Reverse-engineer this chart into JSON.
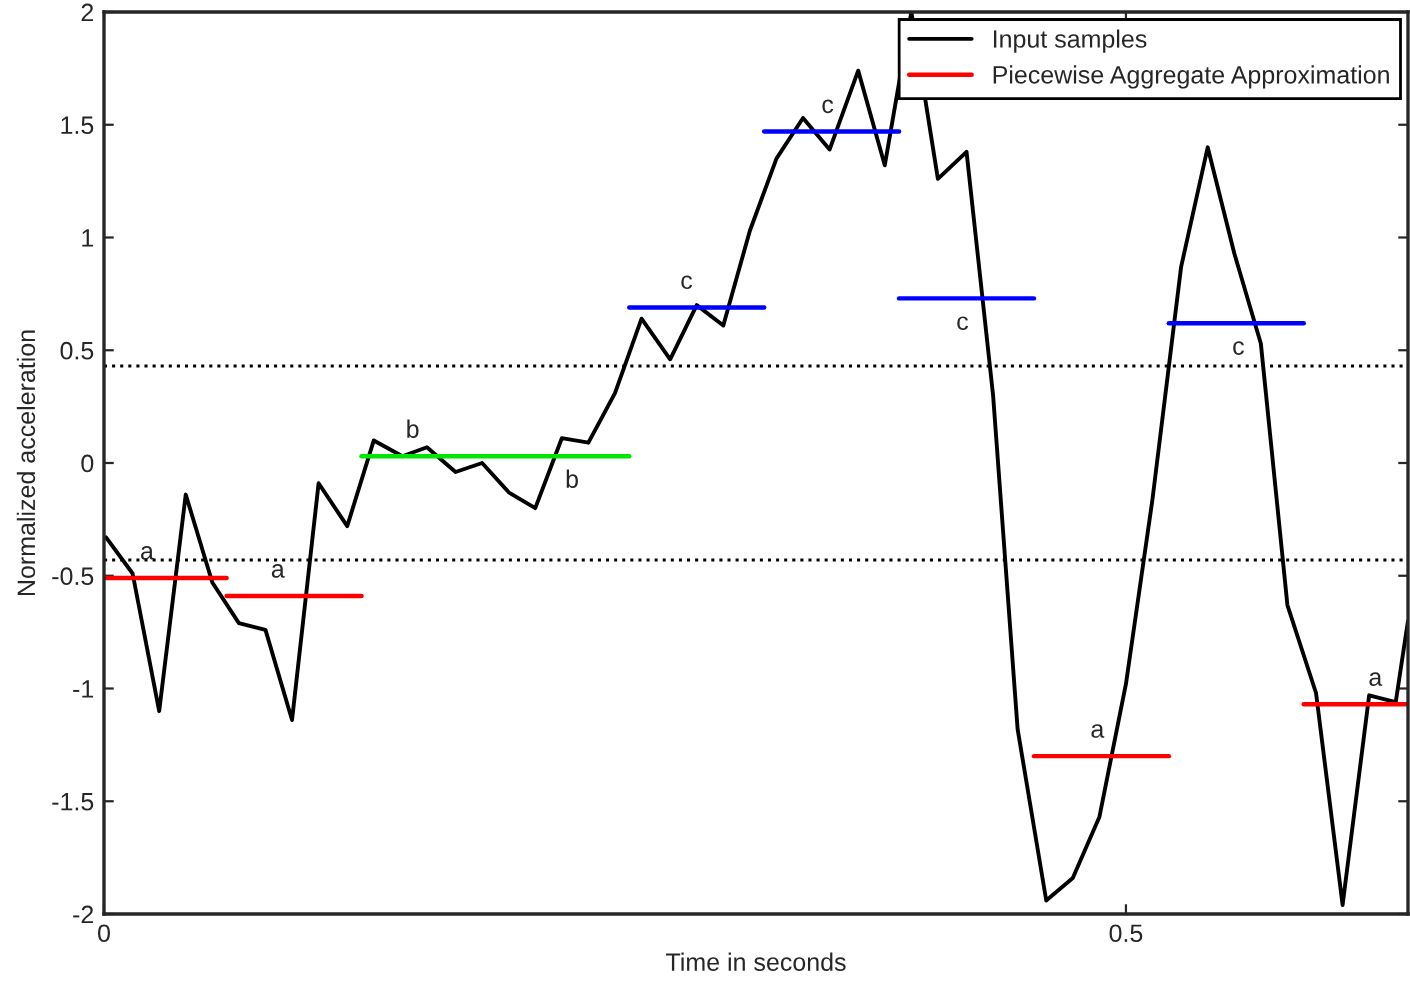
{
  "chart_data": {
    "type": "line",
    "xlabel": "Time in seconds",
    "ylabel": "Normalized acceleration",
    "xlim": [
      0,
      0.638
    ],
    "ylim": [
      -2,
      2
    ],
    "xticks": [
      0,
      0.5
    ],
    "yticks": [
      -2,
      -1.5,
      -1,
      -0.5,
      0,
      0.5,
      1,
      1.5,
      2
    ],
    "grid": false,
    "legend": "top right",
    "marker": "none",
    "line_style": "solid",
    "series": [
      {
        "name": "Input samples",
        "color": "#000000",
        "x": [
          0.001,
          0.014,
          0.027,
          0.04,
          0.053,
          0.066,
          0.079,
          0.092,
          0.105,
          0.119,
          0.132,
          0.146,
          0.158,
          0.172,
          0.185,
          0.198,
          0.211,
          0.224,
          0.237,
          0.25,
          0.263,
          0.277,
          0.29,
          0.303,
          0.316,
          0.329,
          0.342,
          0.355,
          0.369,
          0.382,
          0.395,
          0.408,
          0.422,
          0.435,
          0.447,
          0.461,
          0.474,
          0.487,
          0.5,
          0.513,
          0.527,
          0.54,
          0.553,
          0.566,
          0.579,
          0.593,
          0.606,
          0.619,
          0.632,
          0.638
        ],
        "values": [
          -0.33,
          -0.49,
          -1.1,
          -0.14,
          -0.53,
          -0.71,
          -0.74,
          -1.14,
          -0.09,
          -0.28,
          0.1,
          0.03,
          0.07,
          -0.04,
          0.0,
          -0.13,
          -0.2,
          0.11,
          0.09,
          0.31,
          0.64,
          0.46,
          0.7,
          0.61,
          1.03,
          1.35,
          1.53,
          1.39,
          1.74,
          1.32,
          2.0,
          1.26,
          1.38,
          0.3,
          -1.18,
          -1.94,
          -1.84,
          -1.57,
          -0.98,
          -0.16,
          0.87,
          1.4,
          0.93,
          0.53,
          -0.63,
          -1.02,
          -1.96,
          -1.03,
          -1.06,
          -0.7
        ]
      },
      {
        "name": "Piecewise Aggregate Approximation",
        "color": "#ff0000",
        "x": [
          0.001,
          0.06
        ],
        "values": [
          -0.51,
          -0.51
        ]
      },
      {
        "color": "#ff0000",
        "x": [
          0.06,
          0.126
        ],
        "values": [
          -0.59,
          -0.59
        ]
      },
      {
        "color": "#00e600",
        "x": [
          0.126,
          0.257
        ],
        "values": [
          0.03,
          0.03
        ]
      },
      {
        "color": "#0000ff",
        "x": [
          0.257,
          0.323
        ],
        "values": [
          0.69,
          0.69
        ]
      },
      {
        "color": "#0000ff",
        "x": [
          0.323,
          0.389
        ],
        "values": [
          1.47,
          1.47
        ]
      },
      {
        "color": "#0000ff",
        "x": [
          0.389,
          0.455
        ],
        "values": [
          0.73,
          0.73
        ]
      },
      {
        "color": "#ff0000",
        "x": [
          0.455,
          0.521
        ],
        "values": [
          -1.3,
          -1.3
        ]
      },
      {
        "color": "#0000ff",
        "x": [
          0.521,
          0.587
        ],
        "values": [
          0.62,
          0.62
        ]
      },
      {
        "color": "#ff0000",
        "x": [
          0.587,
          0.638
        ],
        "values": [
          -1.07,
          -1.07
        ]
      }
    ],
    "ref_lines": [
      {
        "axis": "y",
        "value": 0.43,
        "color": "#000000",
        "line_style": "dotted"
      },
      {
        "axis": "y",
        "value": -0.43,
        "color": "#000000",
        "line_style": "dotted"
      }
    ],
    "annotations": [
      {
        "text": "a",
        "x": 0.021,
        "y": -0.51
      },
      {
        "text": "a",
        "x": 0.085,
        "y": -0.59
      },
      {
        "text": "b",
        "x": 0.151,
        "y": 0.03
      },
      {
        "text": "b",
        "x": 0.229,
        "y": 0.03
      },
      {
        "text": "c",
        "x": 0.285,
        "y": 0.69
      },
      {
        "text": "c",
        "x": 0.354,
        "y": 1.47
      },
      {
        "text": "c",
        "x": 0.42,
        "y": 0.73
      },
      {
        "text": "a",
        "x": 0.486,
        "y": -1.3
      },
      {
        "text": "c",
        "x": 0.555,
        "y": 0.62
      },
      {
        "text": "a",
        "x": 0.622,
        "y": -1.07
      }
    ]
  }
}
